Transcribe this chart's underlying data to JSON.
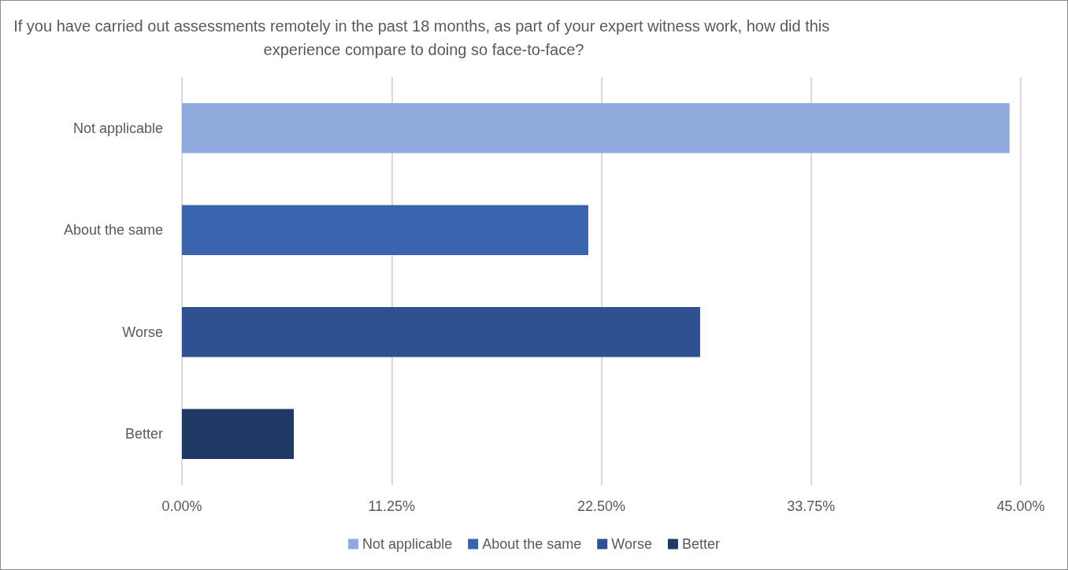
{
  "chart_data": {
    "type": "bar",
    "orientation": "horizontal",
    "title": "If you have carried out assessments remotely in the past 18 months, as part of your expert witness work, how did this experience compare to doing so face-to-face?",
    "categories": [
      "Not applicable",
      "About the same",
      "Worse",
      "Better"
    ],
    "series": [
      {
        "name": "Not applicable",
        "color": "#8faadc",
        "values": [
          44.4,
          null,
          null,
          null
        ]
      },
      {
        "name": "About the same",
        "color": "#3a63ad",
        "values": [
          null,
          21.8,
          null,
          null
        ]
      },
      {
        "name": "Worse",
        "color": "#2e5190",
        "values": [
          null,
          null,
          27.8,
          null
        ]
      },
      {
        "name": "Better",
        "color": "#203864",
        "values": [
          null,
          null,
          null,
          6.0
        ]
      }
    ],
    "xlim": [
      0,
      45
    ],
    "xticks": [
      {
        "value": 0,
        "label": "0.00%"
      },
      {
        "value": 11.25,
        "label": "11.25%"
      },
      {
        "value": 22.5,
        "label": "22.50%"
      },
      {
        "value": 33.75,
        "label": "33.75%"
      },
      {
        "value": 45,
        "label": "45.00%"
      }
    ],
    "grid": "x",
    "legend": "bottom"
  }
}
